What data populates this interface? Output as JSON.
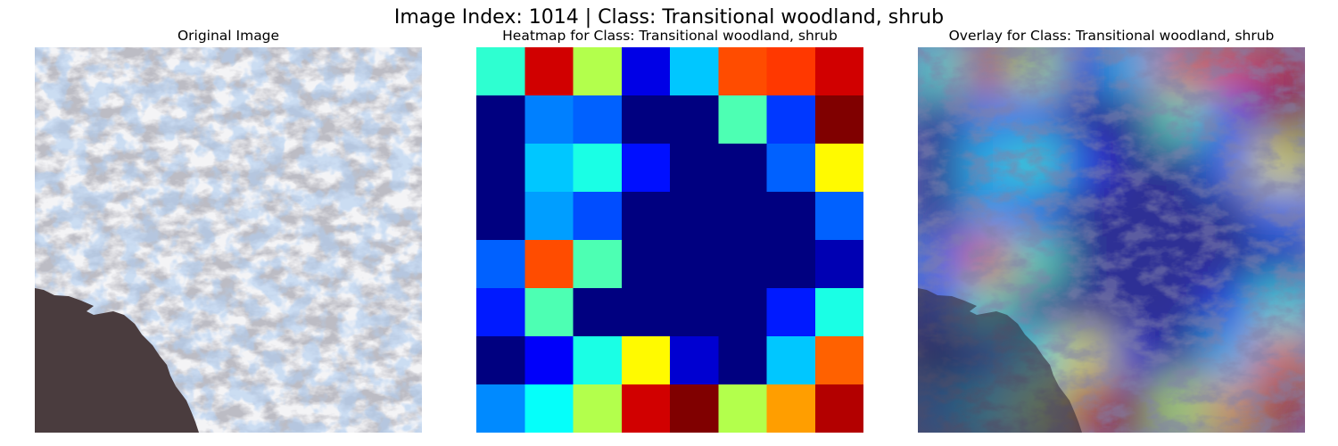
{
  "figure": {
    "suptitle": "Image Index: 1014 | Class: Transitional woodland, shrub"
  },
  "panels": {
    "original": {
      "title": "Original Image"
    },
    "heatmap": {
      "title": "Heatmap for Class: Transitional woodland, shrub"
    },
    "overlay": {
      "title": "Overlay for Class: Transitional woodland, shrub"
    }
  },
  "colors": {
    "snow": "#f4f4f6",
    "rock": "#8a8a92",
    "water_blue": "#6f9fe0",
    "lake": "#4a3c3e",
    "overlay_base": "#7a7fb8"
  },
  "chart_data": {
    "type": "heatmap",
    "colormap": "jet",
    "rows": 8,
    "cols": 8,
    "values": [
      [
        0.42,
        0.92,
        0.55,
        0.1,
        0.32,
        0.8,
        0.82,
        0.92
      ],
      [
        0.0,
        0.25,
        0.22,
        0.0,
        0.0,
        0.45,
        0.18,
        1.0
      ],
      [
        0.0,
        0.32,
        0.4,
        0.14,
        0.0,
        0.0,
        0.22,
        0.63
      ],
      [
        0.0,
        0.28,
        0.2,
        0.0,
        0.0,
        0.0,
        0.0,
        0.22
      ],
      [
        0.22,
        0.8,
        0.45,
        0.0,
        0.0,
        0.0,
        0.0,
        0.05
      ],
      [
        0.15,
        0.45,
        0.0,
        0.0,
        0.0,
        0.0,
        0.15,
        0.4
      ],
      [
        0.0,
        0.12,
        0.4,
        0.63,
        0.08,
        0.0,
        0.32,
        0.78
      ],
      [
        0.26,
        0.38,
        0.55,
        0.92,
        1.0,
        0.55,
        0.72,
        0.95
      ]
    ]
  }
}
